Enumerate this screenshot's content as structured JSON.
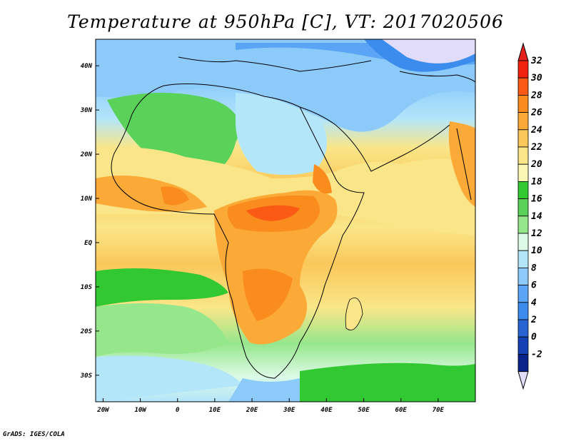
{
  "title": "Temperature at 950hPa [C], VT: 2017020506",
  "credit": "GrADS: IGES/COLA",
  "map": {
    "lon_range": [
      -22,
      80
    ],
    "lat_range": [
      -36,
      46
    ],
    "lat_labels": [
      {
        "lat": 40,
        "text": "40N"
      },
      {
        "lat": 30,
        "text": "30N"
      },
      {
        "lat": 20,
        "text": "20N"
      },
      {
        "lat": 10,
        "text": "10N"
      },
      {
        "lat": 0,
        "text": "EQ"
      },
      {
        "lat": -10,
        "text": "10S"
      },
      {
        "lat": -20,
        "text": "20S"
      },
      {
        "lat": -30,
        "text": "30S"
      }
    ],
    "lon_labels": [
      {
        "lon": -20,
        "text": "20W"
      },
      {
        "lon": -10,
        "text": "10W"
      },
      {
        "lon": 0,
        "text": "0"
      },
      {
        "lon": 10,
        "text": "10E"
      },
      {
        "lon": 20,
        "text": "20E"
      },
      {
        "lon": 30,
        "text": "30E"
      },
      {
        "lon": 40,
        "text": "40E"
      },
      {
        "lon": 50,
        "text": "50E"
      },
      {
        "lon": 60,
        "text": "60E"
      },
      {
        "lon": 70,
        "text": "70E"
      }
    ]
  },
  "colorbar": {
    "levels": [
      "32",
      "30",
      "28",
      "26",
      "24",
      "22",
      "20",
      "18",
      "16",
      "14",
      "12",
      "10",
      "8",
      "6",
      "4",
      "2",
      "0",
      "-2"
    ],
    "colors": [
      "#f0220e",
      "#fa5a14",
      "#fa8c1e",
      "#fcaa37",
      "#fac85a",
      "#fae688",
      "#fcf7b4",
      "#32c832",
      "#5ad25a",
      "#96e68c",
      "#dcfae6",
      "#b4e6fa",
      "#8ccafa",
      "#5aa5f5",
      "#3c8ced",
      "#2864d2",
      "#1441b4",
      "#0a2389"
    ],
    "over_color": "#e6221e",
    "under_color": "#e1dcfa"
  }
}
